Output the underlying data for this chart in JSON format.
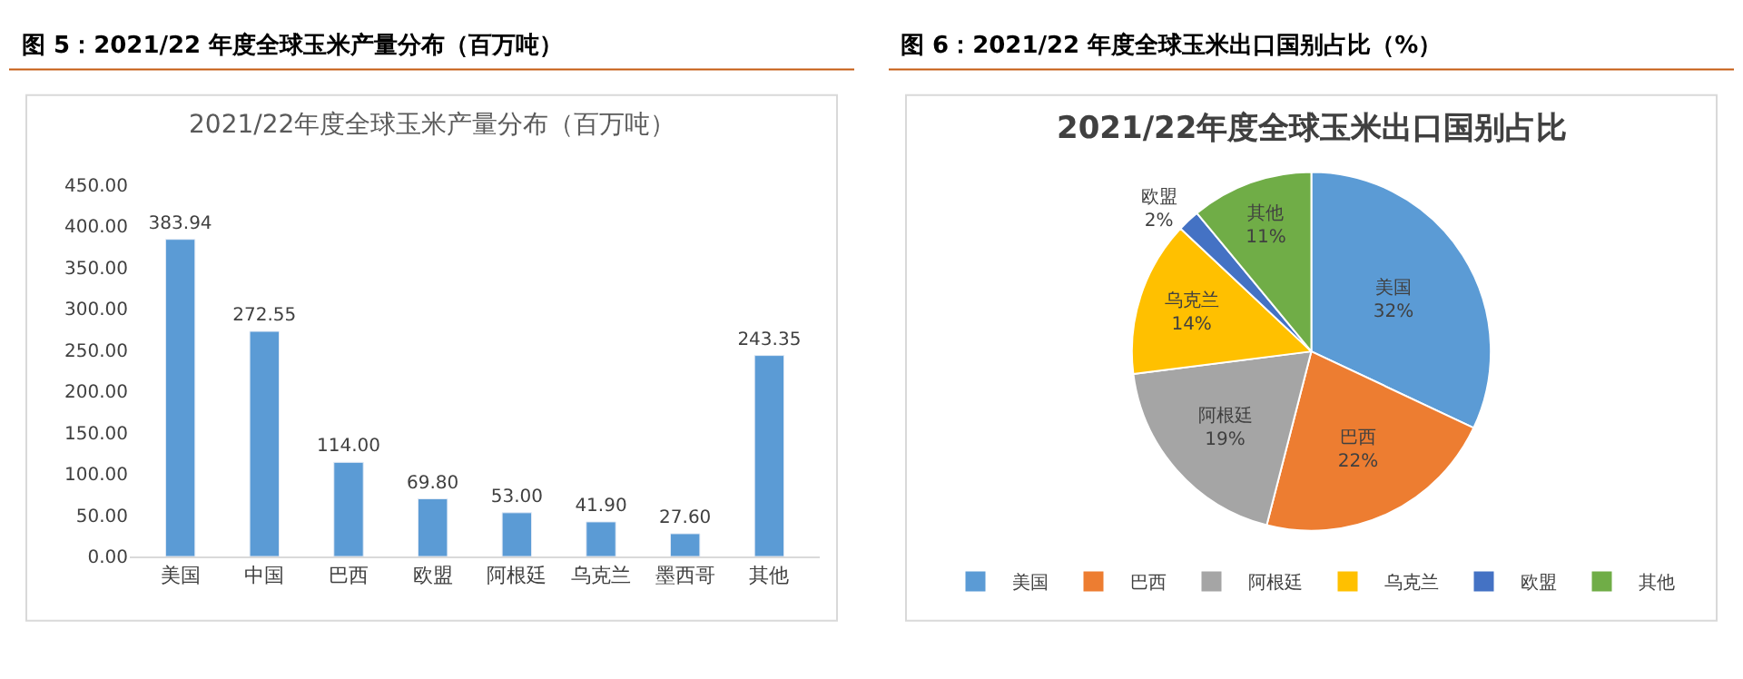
{
  "chart_data": [
    {
      "type": "bar",
      "title": "图 5：2021/22 年度全球玉米产量分布（百万吨）",
      "subtitle": "2021/22年度全球玉米产量分布（百万吨）",
      "categories": [
        "美国",
        "中国",
        "巴西",
        "欧盟",
        "阿根廷",
        "乌克兰",
        "墨西哥",
        "其他"
      ],
      "values": [
        383.94,
        272.55,
        114.0,
        69.8,
        53.0,
        41.9,
        27.6,
        243.35
      ],
      "value_labels": [
        "383.94",
        "272.55",
        "114.00",
        "69.80",
        "53.00",
        "41.90",
        "27.60",
        "243.35"
      ],
      "color": "#5b9bd5",
      "ylim": [
        0,
        450
      ],
      "yticks": [
        {
          "value": 0,
          "label": "0.00"
        },
        {
          "value": 50,
          "label": "50.00"
        },
        {
          "value": 100,
          "label": "100.00"
        },
        {
          "value": 150,
          "label": "150.00"
        },
        {
          "value": 200,
          "label": "200.00"
        },
        {
          "value": 250,
          "label": "250.00"
        },
        {
          "value": 300,
          "label": "300.00"
        },
        {
          "value": 350,
          "label": "350.00"
        },
        {
          "value": 400,
          "label": "400.00"
        },
        {
          "value": 450,
          "label": "450.00"
        }
      ],
      "legend": false
    },
    {
      "type": "pie",
      "title": "图 6：2021/22 年度全球玉米出口国别占比（%）",
      "subtitle": "2021/22年度全球玉米出口国别占比",
      "categories": [
        "美国",
        "巴西",
        "阿根廷",
        "乌克兰",
        "欧盟",
        "其他"
      ],
      "values": [
        32,
        22,
        19,
        14,
        2,
        11
      ],
      "value_labels": [
        "32%",
        "22%",
        "19%",
        "14%",
        "2%",
        "11%"
      ],
      "colors": [
        "#5b9bd5",
        "#ed7d31",
        "#a5a5a5",
        "#ffc000",
        "#4472c4",
        "#70ad47"
      ],
      "legend": "bottom"
    }
  ]
}
